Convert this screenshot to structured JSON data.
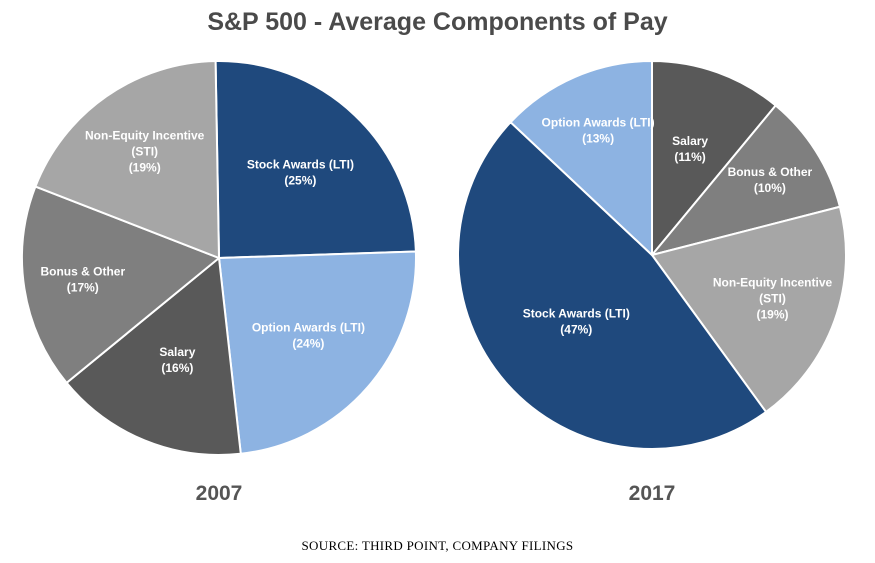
{
  "header": {
    "title": "S&P 500 - Average Components of Pay"
  },
  "footer": {
    "source": "SOURCE: THIRD POINT, COMPANY FILINGS"
  },
  "chart_data": [
    {
      "type": "pie",
      "label": "2007",
      "slices": [
        {
          "name": "Stock Awards (LTI)",
          "lines": [
            "Stock Awards (LTI)",
            "(25%)"
          ],
          "value": 25,
          "color": "#1f497d",
          "text_color": "#ffffff"
        },
        {
          "name": "Option Awards (LTI)",
          "lines": [
            "Option Awards (LTI)",
            "(24%)"
          ],
          "value": 24,
          "color": "#8db3e2",
          "text_color": "#ffffff"
        },
        {
          "name": "Salary",
          "lines": [
            "Salary",
            "(16%)"
          ],
          "value": 16,
          "color": "#595959",
          "text_color": "#ffffff"
        },
        {
          "name": "Bonus & Other",
          "lines": [
            "Bonus & Other",
            "(17%)"
          ],
          "value": 17,
          "color": "#7f7f7f",
          "text_color": "#ffffff"
        },
        {
          "name": "Non-Equity Incentive (STI)",
          "lines": [
            "Non-Equity Incentive",
            "(STI)",
            "(19%)"
          ],
          "value": 19,
          "color": "#a6a6a6",
          "text_color": "#ffffff"
        }
      ]
    },
    {
      "type": "pie",
      "label": "2017",
      "slices": [
        {
          "name": "Salary",
          "lines": [
            "Salary",
            "(11%)"
          ],
          "value": 11,
          "color": "#595959",
          "text_color": "#ffffff"
        },
        {
          "name": "Bonus & Other",
          "lines": [
            "Bonus & Other",
            "(10%)"
          ],
          "value": 10,
          "color": "#7f7f7f",
          "text_color": "#ffffff"
        },
        {
          "name": "Non-Equity Incentive (STI)",
          "lines": [
            "Non-Equity Incentive",
            "(STI)",
            "(19%)"
          ],
          "value": 19,
          "color": "#a6a6a6",
          "text_color": "#ffffff"
        },
        {
          "name": "Stock Awards (LTI)",
          "lines": [
            "Stock Awards (LTI)",
            "(47%)"
          ],
          "value": 47,
          "color": "#1f497d",
          "text_color": "#ffffff"
        },
        {
          "name": "Option Awards (LTI)",
          "lines": [
            "Option Awards (LTI)",
            "(13%)"
          ],
          "value": 13,
          "color": "#8db3e2",
          "text_color": "#ffffff"
        }
      ]
    }
  ]
}
